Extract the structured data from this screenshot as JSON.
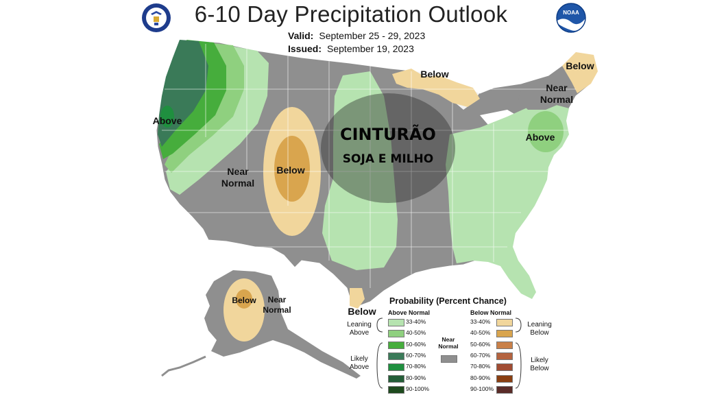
{
  "header": {
    "title": "6-10 Day Precipitation Outlook",
    "valid_label": "Valid:",
    "valid_value": "September 25 - 29, 2023",
    "issued_label": "Issued:",
    "issued_value": "September 19, 2023",
    "noaa_logo_text": "NOAA"
  },
  "map_labels": {
    "west_above": "Above",
    "west_near_1": "Near",
    "west_near_2": "Normal",
    "rockies_below": "Below",
    "great_lakes_below": "Below",
    "maine_below": "Below",
    "ne_near_1": "Near",
    "ne_near_2": "Normal",
    "midatl_above": "Above",
    "texas_below": "Below",
    "alaska_below": "Below",
    "alaska_near_1": "Near",
    "alaska_near_2": "Normal"
  },
  "overlay": {
    "line1": "CINTURÃO",
    "line2": "SOJA E MILHO"
  },
  "legend": {
    "title": "Probability (Percent Chance)",
    "above_header": "Above Normal",
    "below_header": "Below Normal",
    "near_header_1": "Near",
    "near_header_2": "Normal",
    "leaning_above_1": "Leaning",
    "leaning_above_2": "Above",
    "likely_above_1": "Likely",
    "likely_above_2": "Above",
    "leaning_below_1": "Leaning",
    "leaning_below_2": "Below",
    "likely_below_1": "Likely",
    "likely_below_2": "Below",
    "above_bins": [
      {
        "label": "33-40%",
        "color": "#b6e3b0"
      },
      {
        "label": "40-50%",
        "color": "#8fd07f"
      },
      {
        "label": "50-60%",
        "color": "#46ad3c"
      },
      {
        "label": "60-70%",
        "color": "#3a7a58"
      },
      {
        "label": "70-80%",
        "color": "#1f8f3f"
      },
      {
        "label": "80-90%",
        "color": "#245e38"
      },
      {
        "label": "90-100%",
        "color": "#1e4a1e"
      }
    ],
    "below_bins": [
      {
        "label": "33-40%",
        "color": "#f1d69c"
      },
      {
        "label": "40-50%",
        "color": "#d9a54e"
      },
      {
        "label": "50-60%",
        "color": "#c98048"
      },
      {
        "label": "60-70%",
        "color": "#b4633f"
      },
      {
        "label": "70-80%",
        "color": "#a04c33"
      },
      {
        "label": "80-90%",
        "color": "#8a3f12"
      },
      {
        "label": "90-100%",
        "color": "#5a2c28"
      }
    ],
    "near_color": "#8f8f8f"
  }
}
